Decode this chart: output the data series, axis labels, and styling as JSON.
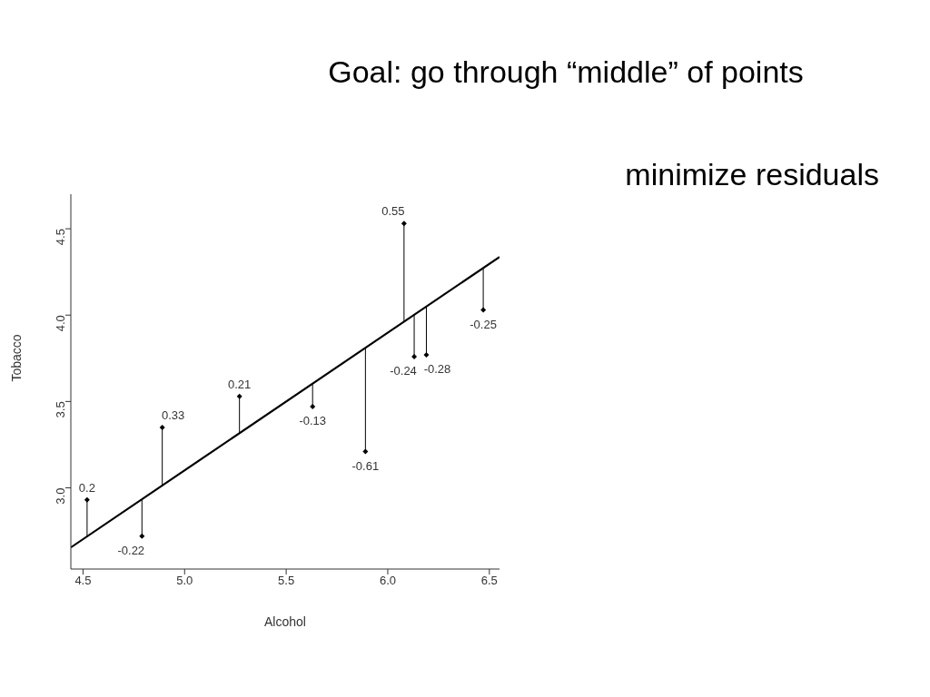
{
  "chart_data": {
    "type": "scatter",
    "title": "Goal: go through “middle” of points",
    "xlabel": "Alcohol",
    "ylabel": "Tobacco",
    "xlim": [
      4.44,
      6.55
    ],
    "ylim": [
      2.53,
      4.7
    ],
    "xticks": [
      4.5,
      {
        "value": 5,
        "label": "5.0"
      },
      5.5,
      {
        "value": 6,
        "label": "6.0"
      },
      6.5
    ],
    "yticks": [
      {
        "value": 3,
        "label": "3.0"
      },
      3.5,
      {
        "value": 4,
        "label": "4.0"
      },
      4.5
    ],
    "series": [
      {
        "color": "#000000",
        "marker": "diamond",
        "x": [
          4.52,
          4.79,
          4.89,
          5.27,
          5.63,
          5.89,
          6.08,
          6.13,
          6.19,
          6.47
        ],
        "values": [
          2.93,
          2.72,
          3.35,
          3.53,
          3.47,
          3.21,
          4.53,
          3.76,
          3.77,
          4.03
        ],
        "errors": [
          [
            2.72,
            2.93
          ],
          [
            2.72,
            2.93
          ],
          [
            3.01,
            3.35
          ],
          [
            3.32,
            3.53
          ],
          [
            3.47,
            3.6
          ],
          [
            3.21,
            3.81
          ],
          [
            3.96,
            4.53
          ],
          [
            3.76,
            4.0
          ],
          [
            3.77,
            4.05
          ],
          [
            4.03,
            4.27
          ]
        ]
      },
      {
        "type": "line",
        "color": "#000000",
        "x": [
          4.44,
          6.55
        ],
        "values": [
          2.655,
          4.337
        ]
      }
    ],
    "annotations": [
      "minimize residuals",
      {
        "text": "0.2",
        "x": 4.52,
        "y": 2.93
      },
      {
        "text": "-0.22",
        "x": 4.79,
        "y": 2.72
      },
      {
        "text": "0.33",
        "x": 4.89,
        "y": 3.35
      },
      {
        "text": "0.21",
        "x": 5.27,
        "y": 3.53
      },
      {
        "text": "-0.13",
        "x": 5.63,
        "y": 3.47
      },
      {
        "text": "-0.61",
        "x": 5.89,
        "y": 3.21
      },
      {
        "text": "0.55",
        "x": 6.08,
        "y": 4.53
      },
      {
        "text": "-0.24",
        "x": 6.13,
        "y": 3.76
      },
      {
        "text": "-0.28",
        "x": 6.19,
        "y": 3.77
      },
      {
        "text": "-0.25",
        "x": 6.47,
        "y": 4.03
      }
    ]
  }
}
